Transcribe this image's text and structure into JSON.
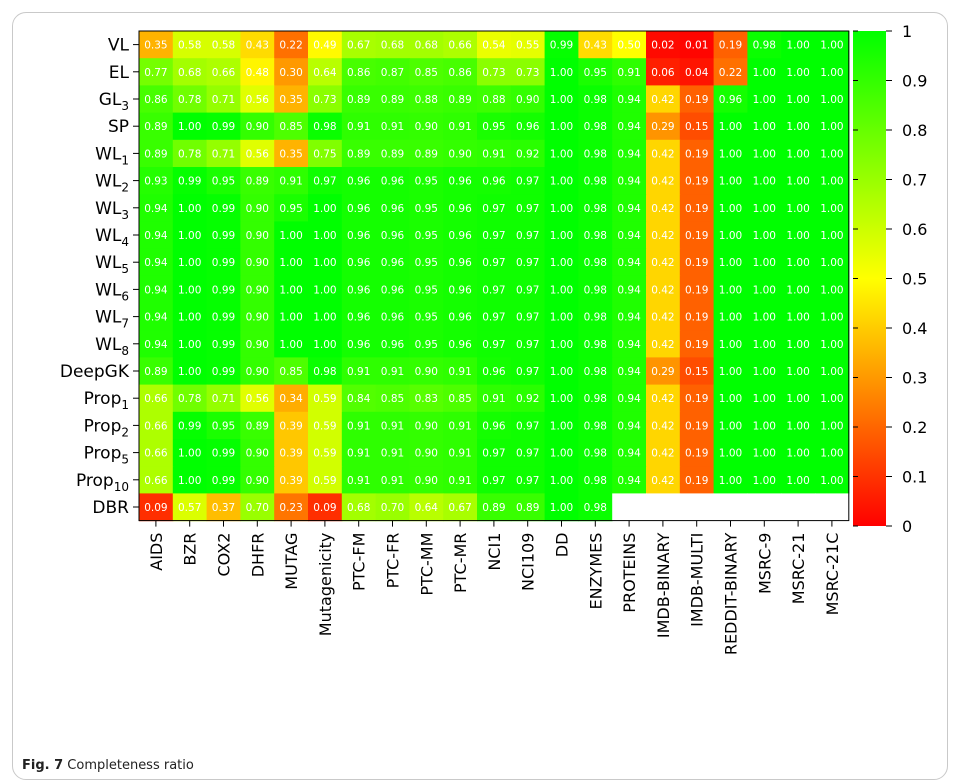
{
  "figure": {
    "caption_label": "Fig. 7",
    "caption_text": "Completeness ratio"
  },
  "chart_data": {
    "type": "heatmap",
    "title": "",
    "xlabel": "",
    "ylabel": "",
    "rows": [
      {
        "base": "VL",
        "sub": ""
      },
      {
        "base": "EL",
        "sub": ""
      },
      {
        "base": "GL",
        "sub": "3"
      },
      {
        "base": "SP",
        "sub": ""
      },
      {
        "base": "WL",
        "sub": "1"
      },
      {
        "base": "WL",
        "sub": "2"
      },
      {
        "base": "WL",
        "sub": "3"
      },
      {
        "base": "WL",
        "sub": "4"
      },
      {
        "base": "WL",
        "sub": "5"
      },
      {
        "base": "WL",
        "sub": "6"
      },
      {
        "base": "WL",
        "sub": "7"
      },
      {
        "base": "WL",
        "sub": "8"
      },
      {
        "base": "DeepGK",
        "sub": ""
      },
      {
        "base": "Prop",
        "sub": "1"
      },
      {
        "base": "Prop",
        "sub": "2"
      },
      {
        "base": "Prop",
        "sub": "5"
      },
      {
        "base": "Prop",
        "sub": "10"
      },
      {
        "base": "DBR",
        "sub": ""
      }
    ],
    "columns": [
      "AIDS",
      "BZR",
      "COX2",
      "DHFR",
      "MUTAG",
      "Mutagenicity",
      "PTC-FM",
      "PTC-FR",
      "PTC-MM",
      "PTC-MR",
      "NCI1",
      "NCI109",
      "DD",
      "ENZYMES",
      "PROTEINS",
      "IMDB-BINARY",
      "IMDB-MULTI",
      "REDDIT-BINARY",
      "MSRC-9",
      "MSRC-21",
      "MSRC-21C"
    ],
    "values": [
      [
        0.35,
        0.58,
        0.58,
        0.43,
        0.22,
        0.49,
        0.67,
        0.68,
        0.68,
        0.66,
        0.54,
        0.55,
        0.99,
        0.43,
        0.5,
        0.02,
        0.01,
        0.19,
        0.98,
        1.0,
        1.0
      ],
      [
        0.77,
        0.68,
        0.66,
        0.48,
        0.3,
        0.64,
        0.86,
        0.87,
        0.85,
        0.86,
        0.73,
        0.73,
        1.0,
        0.95,
        0.91,
        0.06,
        0.04,
        0.22,
        1.0,
        1.0,
        1.0
      ],
      [
        0.86,
        0.78,
        0.71,
        0.56,
        0.35,
        0.73,
        0.89,
        0.89,
        0.88,
        0.89,
        0.88,
        0.9,
        1.0,
        0.98,
        0.94,
        0.42,
        0.19,
        0.96,
        1.0,
        1.0,
        1.0
      ],
      [
        0.89,
        1.0,
        0.99,
        0.9,
        0.85,
        0.98,
        0.91,
        0.91,
        0.9,
        0.91,
        0.95,
        0.96,
        1.0,
        0.98,
        0.94,
        0.29,
        0.15,
        1.0,
        1.0,
        1.0,
        1.0
      ],
      [
        0.89,
        0.78,
        0.71,
        0.56,
        0.35,
        0.75,
        0.89,
        0.89,
        0.89,
        0.9,
        0.91,
        0.92,
        1.0,
        0.98,
        0.94,
        0.42,
        0.19,
        1.0,
        1.0,
        1.0,
        1.0
      ],
      [
        0.93,
        0.99,
        0.95,
        0.89,
        0.91,
        0.97,
        0.96,
        0.96,
        0.95,
        0.96,
        0.96,
        0.97,
        1.0,
        0.98,
        0.94,
        0.42,
        0.19,
        1.0,
        1.0,
        1.0,
        1.0
      ],
      [
        0.94,
        1.0,
        0.99,
        0.9,
        0.95,
        1.0,
        0.96,
        0.96,
        0.95,
        0.96,
        0.97,
        0.97,
        1.0,
        0.98,
        0.94,
        0.42,
        0.19,
        1.0,
        1.0,
        1.0,
        1.0
      ],
      [
        0.94,
        1.0,
        0.99,
        0.9,
        1.0,
        1.0,
        0.96,
        0.96,
        0.95,
        0.96,
        0.97,
        0.97,
        1.0,
        0.98,
        0.94,
        0.42,
        0.19,
        1.0,
        1.0,
        1.0,
        1.0
      ],
      [
        0.94,
        1.0,
        0.99,
        0.9,
        1.0,
        1.0,
        0.96,
        0.96,
        0.95,
        0.96,
        0.97,
        0.97,
        1.0,
        0.98,
        0.94,
        0.42,
        0.19,
        1.0,
        1.0,
        1.0,
        1.0
      ],
      [
        0.94,
        1.0,
        0.99,
        0.9,
        1.0,
        1.0,
        0.96,
        0.96,
        0.95,
        0.96,
        0.97,
        0.97,
        1.0,
        0.98,
        0.94,
        0.42,
        0.19,
        1.0,
        1.0,
        1.0,
        1.0
      ],
      [
        0.94,
        1.0,
        0.99,
        0.9,
        1.0,
        1.0,
        0.96,
        0.96,
        0.95,
        0.96,
        0.97,
        0.97,
        1.0,
        0.98,
        0.94,
        0.42,
        0.19,
        1.0,
        1.0,
        1.0,
        1.0
      ],
      [
        0.94,
        1.0,
        0.99,
        0.9,
        1.0,
        1.0,
        0.96,
        0.96,
        0.95,
        0.96,
        0.97,
        0.97,
        1.0,
        0.98,
        0.94,
        0.42,
        0.19,
        1.0,
        1.0,
        1.0,
        1.0
      ],
      [
        0.89,
        1.0,
        0.99,
        0.9,
        0.85,
        0.98,
        0.91,
        0.91,
        0.9,
        0.91,
        0.96,
        0.97,
        1.0,
        0.98,
        0.94,
        0.29,
        0.15,
        1.0,
        1.0,
        1.0,
        1.0
      ],
      [
        0.66,
        0.78,
        0.71,
        0.56,
        0.34,
        0.59,
        0.84,
        0.85,
        0.83,
        0.85,
        0.91,
        0.92,
        1.0,
        0.98,
        0.94,
        0.42,
        0.19,
        1.0,
        1.0,
        1.0,
        1.0
      ],
      [
        0.66,
        0.99,
        0.95,
        0.89,
        0.39,
        0.59,
        0.91,
        0.91,
        0.9,
        0.91,
        0.96,
        0.97,
        1.0,
        0.98,
        0.94,
        0.42,
        0.19,
        1.0,
        1.0,
        1.0,
        1.0
      ],
      [
        0.66,
        1.0,
        0.99,
        0.9,
        0.39,
        0.59,
        0.91,
        0.91,
        0.9,
        0.91,
        0.97,
        0.97,
        1.0,
        0.98,
        0.94,
        0.42,
        0.19,
        1.0,
        1.0,
        1.0,
        1.0
      ],
      [
        0.66,
        1.0,
        0.99,
        0.9,
        0.39,
        0.59,
        0.91,
        0.91,
        0.9,
        0.91,
        0.97,
        0.97,
        1.0,
        0.98,
        0.94,
        0.42,
        0.19,
        1.0,
        1.0,
        1.0,
        1.0
      ],
      [
        0.09,
        0.57,
        0.37,
        0.7,
        0.23,
        0.09,
        0.68,
        0.7,
        0.64,
        0.67,
        0.89,
        0.89,
        1.0,
        0.98,
        null,
        null,
        null,
        null,
        null,
        null,
        null
      ]
    ],
    "color_scale": {
      "min": 0,
      "max": 1,
      "colors": [
        "#ff0000",
        "#ffff00",
        "#00ff00"
      ],
      "ticks": [
        0,
        0.1,
        0.2,
        0.3,
        0.4,
        0.5,
        0.6,
        0.7,
        0.8,
        0.9,
        1
      ],
      "tick_labels": [
        "0",
        "0.1",
        "0.2",
        "0.3",
        "0.4",
        "0.5",
        "0.6",
        "0.7",
        "0.8",
        "0.9",
        "1"
      ]
    },
    "missing_color": "#ffffff",
    "grid": false,
    "legend": "right colorbar"
  }
}
